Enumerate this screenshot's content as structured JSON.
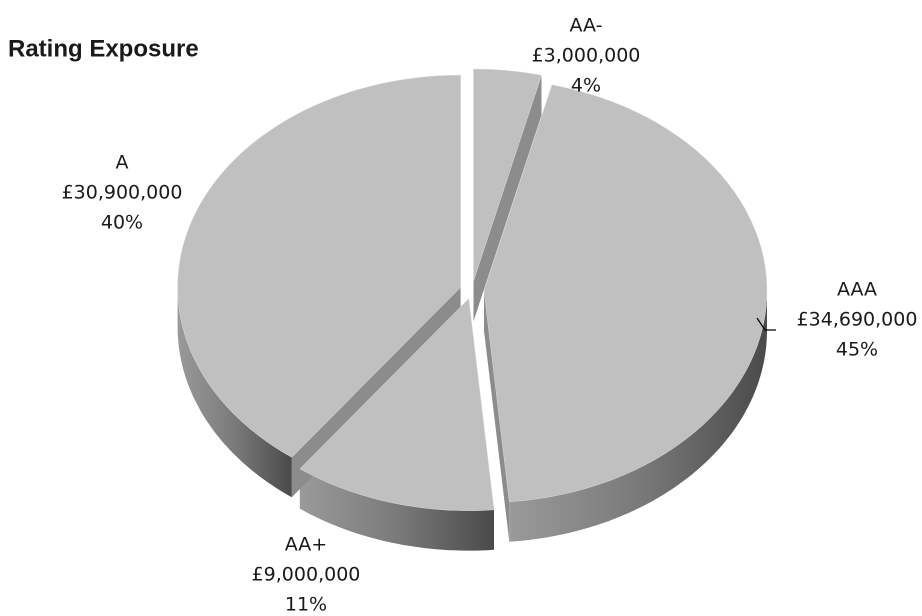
{
  "chart_data": {
    "type": "pie3d",
    "title": "Rating Exposure",
    "categories": [
      "AA-",
      "AAA",
      "AA+",
      "A"
    ],
    "values": [
      3000000,
      34690000,
      9000000,
      30900000
    ],
    "value_labels": [
      "£3,000,000",
      "£34,690,000",
      "£9,000,000",
      "£30,900,000"
    ],
    "percent_labels": [
      "4%",
      "45%",
      "11%",
      "40%"
    ],
    "color": "#c0c0c0"
  }
}
